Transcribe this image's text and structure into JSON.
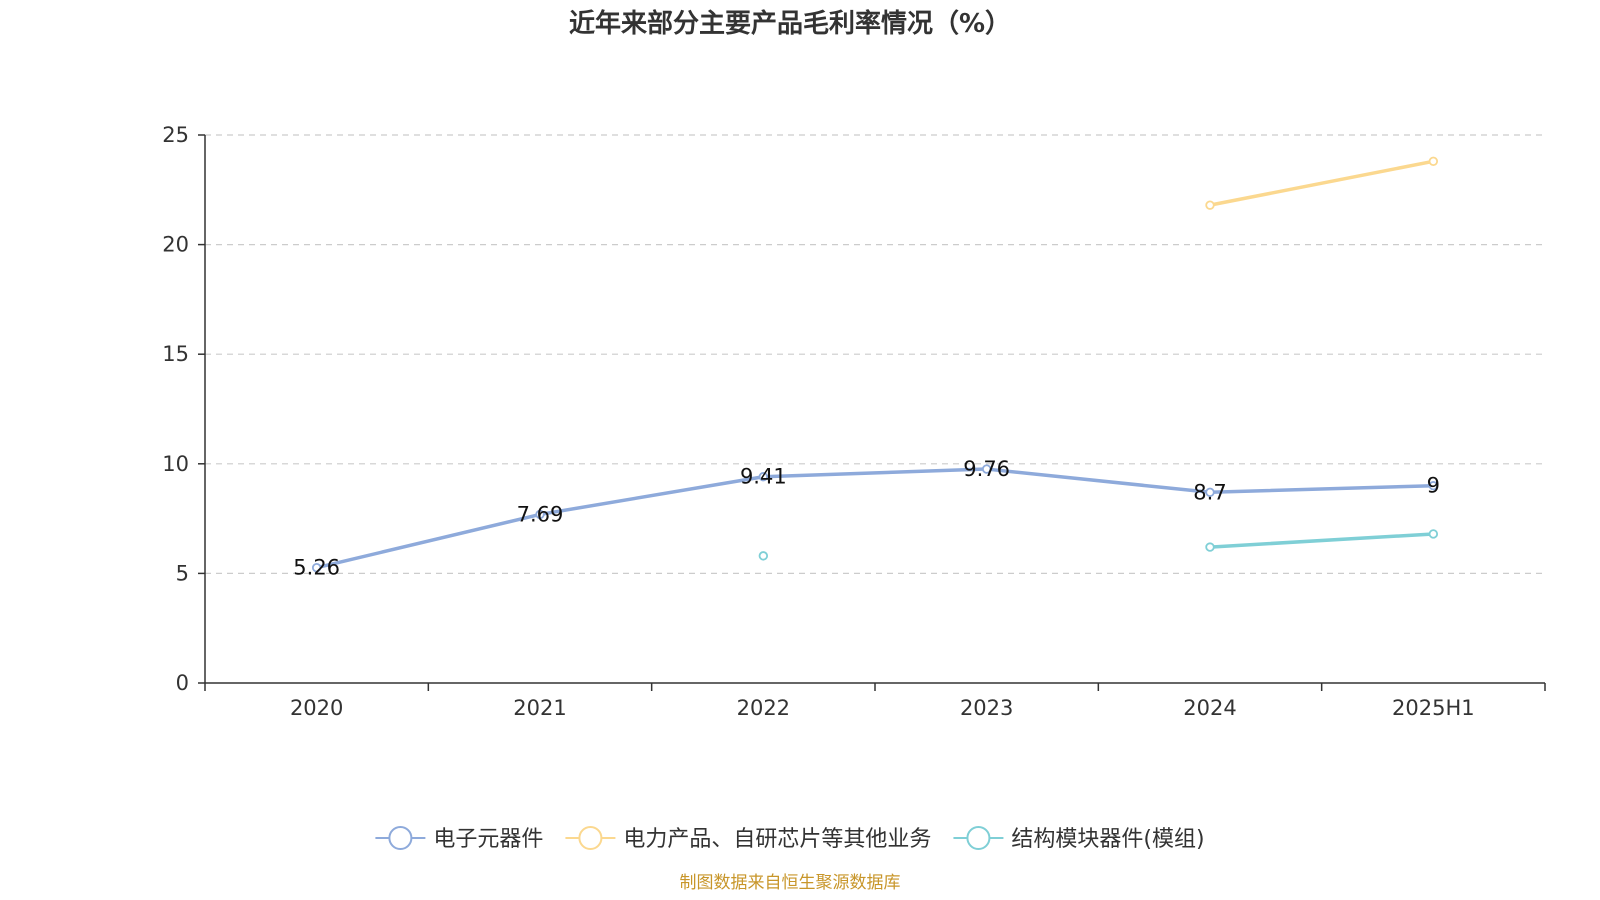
{
  "chart_data": {
    "type": "line",
    "title": "近年来部分主要产品毛利率情况（%）",
    "categories": [
      "2020",
      "2021",
      "2022",
      "2023",
      "2024",
      "2025H1"
    ],
    "ylim": [
      0,
      25
    ],
    "yticks": [
      "0",
      "5",
      "10",
      "15",
      "20",
      "25"
    ],
    "grid": true,
    "legend_position": "bottom",
    "series": [
      {
        "name": "电子元器件",
        "color": "#8eaadb",
        "values": [
          5.26,
          7.69,
          9.41,
          9.76,
          8.7,
          9
        ],
        "labels": [
          "5.26",
          "7.69",
          "9.41",
          "9.76",
          "8.7",
          "9"
        ]
      },
      {
        "name": "电力产品、自研芯片等其他业务",
        "color": "#fbd88f",
        "values": [
          null,
          null,
          null,
          null,
          21.8,
          23.8
        ],
        "labels": []
      },
      {
        "name": "结构模块器件(模组)",
        "color": "#7fcfd6",
        "values": [
          null,
          null,
          5.8,
          null,
          6.2,
          6.8
        ],
        "labels": []
      }
    ]
  },
  "source": "制图数据来自恒生聚源数据库"
}
